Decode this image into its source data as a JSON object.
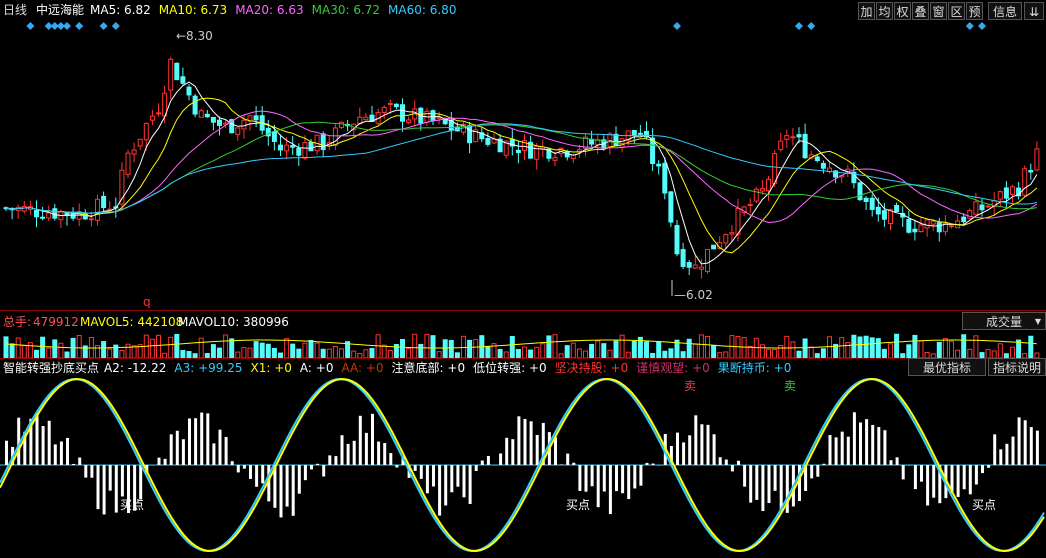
{
  "header": {
    "period": "日线",
    "stock_name": "中远海能",
    "ma": [
      {
        "label": "MA5: 6.82",
        "color": "#ffffff"
      },
      {
        "label": "MA10: 6.73",
        "color": "#ffff00"
      },
      {
        "label": "MA20: 6.63",
        "color": "#ff66ff"
      },
      {
        "label": "MA30: 6.72",
        "color": "#33cc33"
      },
      {
        "label": "MA60: 6.80",
        "color": "#33ccff"
      }
    ],
    "tools": [
      "加",
      "均",
      "权",
      "叠",
      "窗",
      "区",
      "预",
      "信息",
      "⇊"
    ]
  },
  "price_panel": {
    "high_label": "8.30",
    "low_label": "6.02",
    "marker": "q"
  },
  "volume_panel": {
    "total_label": "总手: ",
    "total_value": "479912",
    "mavol5": "MAVOL5: 442108",
    "mavol10": "MAVOL10: 380996",
    "button": "成交量",
    "down_icon": "▼"
  },
  "indicator_panel": {
    "title": "智能转强抄底买点",
    "items": [
      {
        "label": "A2: -12.22",
        "color": "#ffffff"
      },
      {
        "label": "A3: +99.25",
        "color": "#33ccff"
      },
      {
        "label": "X1: +0",
        "color": "#ffff00"
      },
      {
        "label": "A: +0",
        "color": "#ffffff"
      },
      {
        "label": "AA: +0",
        "color": "#cc3300"
      },
      {
        "label": "注意底部: +0",
        "color": "#ffffff"
      },
      {
        "label": "低位转强: +0",
        "color": "#ffffff"
      },
      {
        "label": "坚决持股: +0",
        "color": "#ff3333"
      },
      {
        "label": "谨慎观望: +0",
        "color": "#cc3366"
      },
      {
        "label": "果断持币: +0",
        "color": "#33ccff"
      }
    ],
    "btn_best": "最优指标",
    "btn_help": "指标说明",
    "buy_label": "买点",
    "sell_label": "卖"
  },
  "colors": {
    "up": "#ff3232",
    "down": "#54fcfc",
    "divider": "#8b0000",
    "diamond": "#33aaee"
  }
}
